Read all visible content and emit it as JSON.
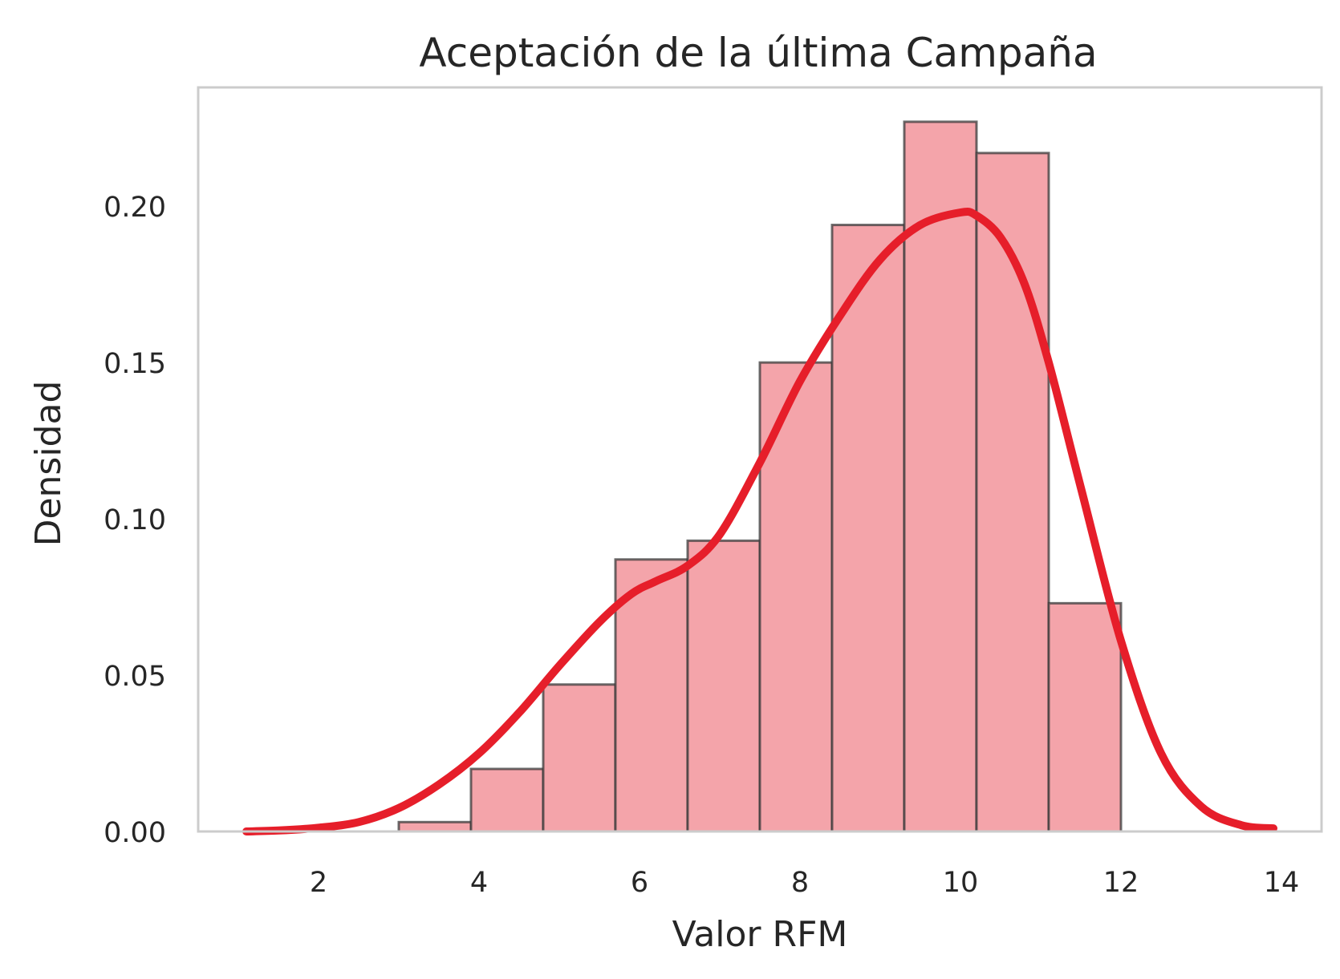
{
  "chart_data": {
    "type": "histogram",
    "title": "Aceptación de la última Campaña",
    "xlabel": "Valor RFM",
    "ylabel": "Densidad",
    "xlim": [
      0.5,
      14.5
    ],
    "ylim": [
      0.0,
      0.238
    ],
    "x_ticks": [
      2,
      4,
      6,
      8,
      10,
      12,
      14
    ],
    "x_tick_labels": [
      "2",
      "4",
      "6",
      "8",
      "10",
      "12",
      "14"
    ],
    "y_ticks": [
      0.0,
      0.05,
      0.1,
      0.15,
      0.2
    ],
    "y_tick_labels": [
      "0.00",
      "0.05",
      "0.10",
      "0.15",
      "0.20"
    ],
    "grid": false,
    "bins": [
      {
        "x0": 3.0,
        "x1": 3.9,
        "density": 0.003
      },
      {
        "x0": 3.9,
        "x1": 4.8,
        "density": 0.02
      },
      {
        "x0": 4.8,
        "x1": 5.7,
        "density": 0.047
      },
      {
        "x0": 5.7,
        "x1": 6.6,
        "density": 0.087
      },
      {
        "x0": 6.6,
        "x1": 7.5,
        "density": 0.093
      },
      {
        "x0": 7.5,
        "x1": 8.4,
        "density": 0.15
      },
      {
        "x0": 8.4,
        "x1": 9.3,
        "density": 0.194
      },
      {
        "x0": 9.3,
        "x1": 10.2,
        "density": 0.227
      },
      {
        "x0": 10.2,
        "x1": 11.1,
        "density": 0.217
      },
      {
        "x0": 11.1,
        "x1": 12.0,
        "density": 0.073
      }
    ],
    "kde": {
      "x": [
        1.1,
        1.5,
        2.0,
        2.5,
        3.0,
        3.5,
        4.0,
        4.5,
        5.0,
        5.5,
        5.9,
        6.2,
        6.6,
        7.0,
        7.5,
        8.0,
        8.5,
        9.0,
        9.5,
        10.0,
        10.2,
        10.5,
        10.8,
        11.1,
        11.5,
        12.0,
        12.5,
        13.0,
        13.5,
        13.9
      ],
      "y": [
        0.0,
        0.0003,
        0.0012,
        0.003,
        0.0075,
        0.015,
        0.025,
        0.038,
        0.053,
        0.067,
        0.076,
        0.08,
        0.085,
        0.095,
        0.118,
        0.144,
        0.165,
        0.183,
        0.194,
        0.198,
        0.197,
        0.19,
        0.175,
        0.15,
        0.11,
        0.061,
        0.025,
        0.008,
        0.002,
        0.001
      ]
    },
    "colors": {
      "bar_fill": "#f4a4aa",
      "bar_edge": "#3a3a3a",
      "kde_line": "#e61e2a",
      "axes_frame": "#cccccc",
      "text": "#262626"
    }
  }
}
